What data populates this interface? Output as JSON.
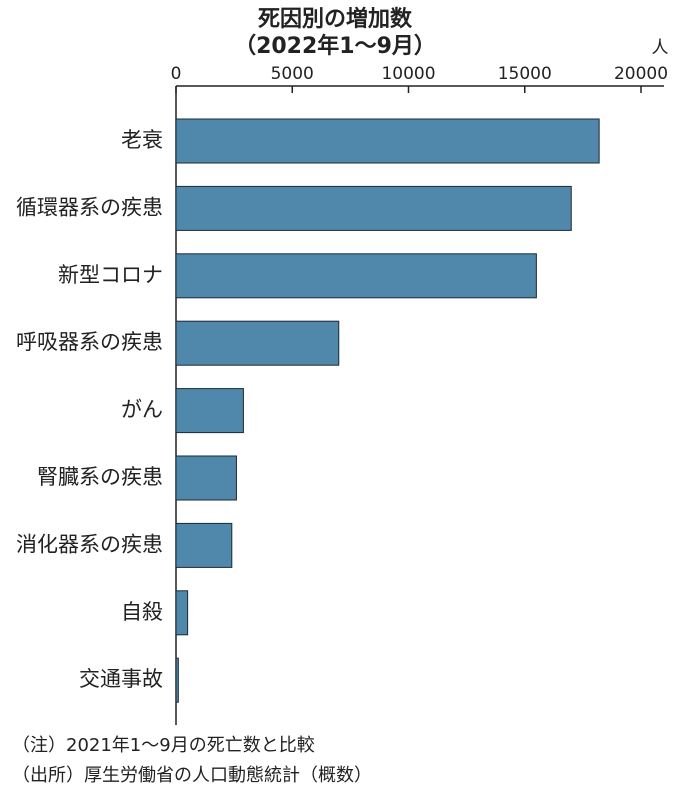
{
  "chart_data": {
    "type": "hbar",
    "title": "死因別の増加数",
    "subtitle": "（2022年1～9月）",
    "x_label": "人",
    "categories": [
      "老衰",
      "循環器系の疾患",
      "新型コロナ",
      "呼吸器系の疾患",
      "がん",
      "腎臓系の疾患",
      "消化器系の疾患",
      "自殺",
      "交通事故"
    ],
    "values": [
      18200,
      17000,
      15500,
      7000,
      2900,
      2600,
      2400,
      500,
      100
    ],
    "color": "#4f88ab",
    "xlim": [
      0,
      20000
    ],
    "xticks": [
      0,
      5000,
      10000,
      15000,
      20000
    ],
    "notes": [
      "（注）2021年1～9月の死亡数と比較",
      "（出所）厚生労働省の人口動態統計（概数）"
    ]
  }
}
